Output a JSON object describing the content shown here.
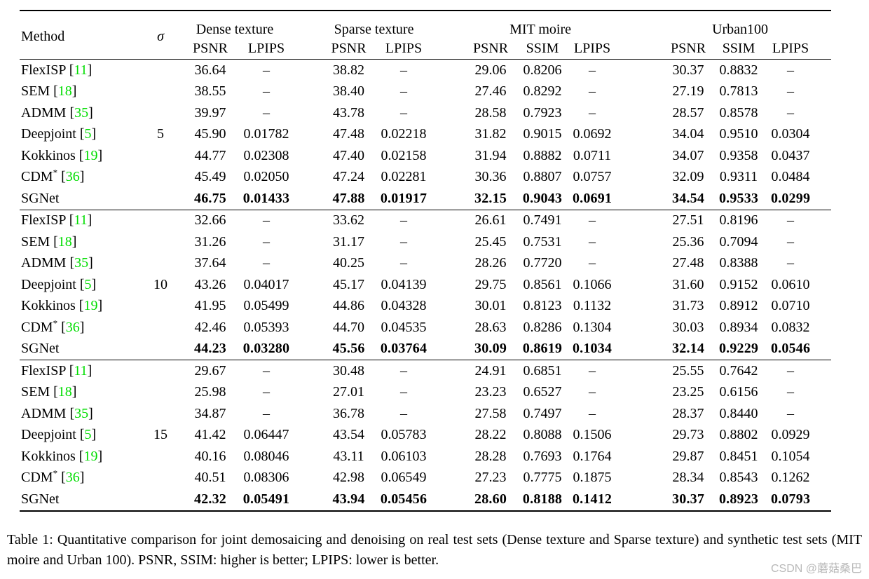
{
  "table": {
    "header": {
      "method": "Method",
      "sigma": "σ",
      "groups": [
        {
          "label": "Dense texture",
          "cols": [
            "PSNR",
            "LPIPS"
          ]
        },
        {
          "label": "Sparse texture",
          "cols": [
            "PSNR",
            "LPIPS"
          ]
        },
        {
          "label": "MIT moire",
          "cols": [
            "PSNR",
            "SSIM",
            "LPIPS"
          ]
        },
        {
          "label": "Urban100",
          "cols": [
            "PSNR",
            "SSIM",
            "LPIPS"
          ]
        }
      ]
    },
    "blocks": [
      {
        "sigma": "5",
        "sigma_row": 3,
        "rows": [
          {
            "name": "FlexISP",
            "cite": "11",
            "values": [
              "36.64",
              "–",
              "38.82",
              "–",
              "29.06",
              "0.8206",
              "–",
              "30.37",
              "0.8832",
              "–"
            ]
          },
          {
            "name": "SEM",
            "cite": "18",
            "values": [
              "38.55",
              "–",
              "38.40",
              "–",
              "27.46",
              "0.8292",
              "–",
              "27.19",
              "0.7813",
              "–"
            ]
          },
          {
            "name": "ADMM",
            "cite": "35",
            "values": [
              "39.97",
              "–",
              "43.78",
              "–",
              "28.58",
              "0.7923",
              "–",
              "28.57",
              "0.8578",
              "–"
            ]
          },
          {
            "name": "Deepjoint",
            "cite": "5",
            "values": [
              "45.90",
              "0.01782",
              "47.48",
              "0.02218",
              "31.82",
              "0.9015",
              "0.0692",
              "34.04",
              "0.9510",
              "0.0304"
            ]
          },
          {
            "name": "Kokkinos",
            "cite": "19",
            "values": [
              "44.77",
              "0.02308",
              "47.40",
              "0.02158",
              "31.94",
              "0.8882",
              "0.0711",
              "34.07",
              "0.9358",
              "0.0437"
            ]
          },
          {
            "name": "CDM",
            "star": true,
            "cite": "36",
            "values": [
              "45.49",
              "0.02050",
              "47.24",
              "0.02281",
              "30.36",
              "0.8807",
              "0.0757",
              "32.09",
              "0.9311",
              "0.0484"
            ]
          },
          {
            "name": "SGNet",
            "bold": true,
            "values": [
              "46.75",
              "0.01433",
              "47.88",
              "0.01917",
              "32.15",
              "0.9043",
              "0.0691",
              "34.54",
              "0.9533",
              "0.0299"
            ]
          }
        ]
      },
      {
        "sigma": "10",
        "sigma_row": 3,
        "rows": [
          {
            "name": "FlexISP",
            "cite": "11",
            "values": [
              "32.66",
              "–",
              "33.62",
              "–",
              "26.61",
              "0.7491",
              "–",
              "27.51",
              "0.8196",
              "–"
            ]
          },
          {
            "name": "SEM",
            "cite": "18",
            "values": [
              "31.26",
              "–",
              "31.17",
              "–",
              "25.45",
              "0.7531",
              "–",
              "25.36",
              "0.7094",
              "–"
            ]
          },
          {
            "name": "ADMM",
            "cite": "35",
            "values": [
              "37.64",
              "–",
              "40.25",
              "–",
              "28.26",
              "0.7720",
              "–",
              "27.48",
              "0.8388",
              "–"
            ]
          },
          {
            "name": "Deepjoint",
            "cite": "5",
            "values": [
              "43.26",
              "0.04017",
              "45.17",
              "0.04139",
              "29.75",
              "0.8561",
              "0.1066",
              "31.60",
              "0.9152",
              "0.0610"
            ]
          },
          {
            "name": "Kokkinos",
            "cite": "19",
            "values": [
              "41.95",
              "0.05499",
              "44.86",
              "0.04328",
              "30.01",
              "0.8123",
              "0.1132",
              "31.73",
              "0.8912",
              "0.0710"
            ]
          },
          {
            "name": "CDM",
            "star": true,
            "cite": "36",
            "values": [
              "42.46",
              "0.05393",
              "44.70",
              "0.04535",
              "28.63",
              "0.8286",
              "0.1304",
              "30.03",
              "0.8934",
              "0.0832"
            ]
          },
          {
            "name": "SGNet",
            "bold": true,
            "values": [
              "44.23",
              "0.03280",
              "45.56",
              "0.03764",
              "30.09",
              "0.8619",
              "0.1034",
              "32.14",
              "0.9229",
              "0.0546"
            ]
          }
        ]
      },
      {
        "sigma": "15",
        "sigma_row": 3,
        "rows": [
          {
            "name": "FlexISP",
            "cite": "11",
            "values": [
              "29.67",
              "–",
              "30.48",
              "–",
              "24.91",
              "0.6851",
              "–",
              "25.55",
              "0.7642",
              "–"
            ]
          },
          {
            "name": "SEM",
            "cite": "18",
            "values": [
              "25.98",
              "–",
              "27.01",
              "–",
              "23.23",
              "0.6527",
              "–",
              "23.25",
              "0.6156",
              "–"
            ]
          },
          {
            "name": "ADMM",
            "cite": "35",
            "values": [
              "34.87",
              "–",
              "36.78",
              "–",
              "27.58",
              "0.7497",
              "–",
              "28.37",
              "0.8440",
              "–"
            ]
          },
          {
            "name": "Deepjoint",
            "cite": "5",
            "values": [
              "41.42",
              "0.06447",
              "43.54",
              "0.05783",
              "28.22",
              "0.8088",
              "0.1506",
              "29.73",
              "0.8802",
              "0.0929"
            ]
          },
          {
            "name": "Kokkinos",
            "cite": "19",
            "values": [
              "40.16",
              "0.08046",
              "43.11",
              "0.06103",
              "28.28",
              "0.7693",
              "0.1764",
              "29.87",
              "0.8451",
              "0.1054"
            ]
          },
          {
            "name": "CDM",
            "star": true,
            "cite": "36",
            "values": [
              "40.51",
              "0.08306",
              "42.98",
              "0.06549",
              "27.23",
              "0.7775",
              "0.1875",
              "28.34",
              "0.8543",
              "0.1262"
            ]
          },
          {
            "name": "SGNet",
            "bold": true,
            "values": [
              "42.32",
              "0.05491",
              "43.94",
              "0.05456",
              "28.60",
              "0.8188",
              "0.1412",
              "30.37",
              "0.8923",
              "0.0793"
            ]
          }
        ]
      }
    ]
  },
  "caption": "Table 1: Quantitative comparison for joint demosaicing and denoising on real test sets (Dense texture and Sparse texture) and synthetic test sets (MIT moire and Urban 100). PSNR, SSIM: higher is better; LPIPS: lower is better.",
  "watermark": "CSDN @蘑菇桑巴",
  "colors": {
    "citation_green": "#00dd00",
    "watermark_gray": "#b9b9b9",
    "text": "#000000"
  }
}
